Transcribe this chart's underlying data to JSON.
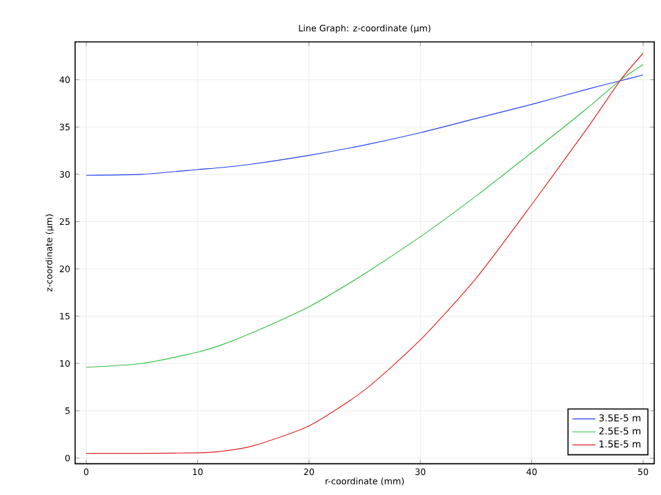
{
  "chart_data": {
    "type": "line",
    "title": "Line Graph: z-coordinate (µm)",
    "xlabel": "r-coordinate (mm)",
    "ylabel": "z-coordinate (µm)",
    "x": [
      0,
      5,
      10,
      12,
      15,
      20,
      25,
      30,
      35,
      40,
      45,
      48,
      50
    ],
    "series": [
      {
        "name": "3.5E-5 m",
        "color": "#2040f0",
        "values": [
          29.9,
          30.0,
          30.5,
          30.7,
          31.1,
          32.0,
          33.1,
          34.4,
          35.9,
          37.4,
          39.0,
          39.9,
          40.5
        ]
      },
      {
        "name": "2.5E-5 m",
        "color": "#30c040",
        "values": [
          9.6,
          10.0,
          11.2,
          11.9,
          13.3,
          16.0,
          19.5,
          23.4,
          27.7,
          32.3,
          37.0,
          40.0,
          41.6
        ]
      },
      {
        "name": "1.5E-5 m",
        "color": "#e02020",
        "values": [
          0.5,
          0.5,
          0.55,
          0.7,
          1.3,
          3.4,
          7.2,
          12.5,
          19.0,
          26.8,
          34.9,
          40.0,
          42.8
        ]
      }
    ],
    "xlim": [
      -1,
      51
    ],
    "ylim": [
      -0.6,
      44
    ],
    "xticks": [
      0,
      10,
      20,
      30,
      40,
      50
    ],
    "yticks": [
      0,
      5,
      10,
      15,
      20,
      25,
      30,
      35,
      40
    ],
    "grid": true,
    "legend": "bottom right",
    "marker": "none",
    "line_style": "solid"
  }
}
